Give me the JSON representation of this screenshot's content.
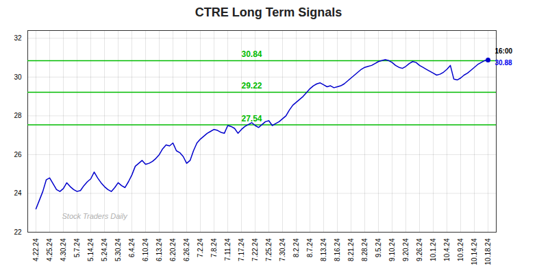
{
  "chart_data": {
    "type": "line",
    "title": "CTRE Long Term Signals",
    "title_color": "#222222",
    "color": "#0000cc",
    "grid": true,
    "ylim": [
      22.0,
      32.4
    ],
    "yticks": [
      22,
      24,
      26,
      28,
      30,
      32
    ],
    "categories": [
      "4.22.24",
      null,
      null,
      null,
      "4.25.24",
      null,
      null,
      null,
      "4.30.24",
      null,
      null,
      null,
      "5.7.24",
      null,
      null,
      null,
      "5.14.24",
      null,
      null,
      null,
      "5.24.24",
      null,
      null,
      null,
      "5.30.24",
      null,
      null,
      null,
      "6.4.24",
      null,
      null,
      null,
      "6.10.24",
      null,
      null,
      null,
      "6.13.24",
      null,
      null,
      null,
      "6.20.24",
      null,
      null,
      null,
      "6.26.24",
      null,
      null,
      null,
      "7.2.24",
      null,
      null,
      null,
      "7.8.24",
      null,
      null,
      null,
      "7.11.24",
      null,
      null,
      null,
      "7.17.24",
      null,
      null,
      null,
      "7.22.24",
      null,
      null,
      null,
      "7.25.24",
      null,
      null,
      null,
      "7.30.24",
      null,
      null,
      null,
      "8.2.24",
      null,
      null,
      null,
      "8.7.24",
      null,
      null,
      null,
      "8.13.24",
      null,
      null,
      null,
      "8.16.24",
      null,
      null,
      null,
      "8.21.24",
      null,
      null,
      null,
      "8.28.24",
      null,
      null,
      null,
      "9.5.24",
      null,
      null,
      null,
      "9.10.24",
      null,
      null,
      null,
      "9.20.24",
      null,
      null,
      null,
      "9.26.24",
      null,
      null,
      null,
      "10.1.24",
      null,
      null,
      null,
      "10.4.24",
      null,
      null,
      null,
      "10.9.24",
      null,
      null,
      null,
      "10.14.24",
      null,
      null,
      null,
      "10.18.24"
    ],
    "values": [
      23.2,
      23.65,
      24.1,
      24.7,
      24.8,
      24.5,
      24.2,
      24.1,
      24.25,
      24.55,
      24.35,
      24.2,
      24.1,
      24.15,
      24.4,
      24.6,
      24.75,
      25.1,
      24.8,
      24.55,
      24.35,
      24.2,
      24.1,
      24.3,
      24.55,
      24.4,
      24.3,
      24.6,
      24.95,
      25.4,
      25.55,
      25.7,
      25.5,
      25.55,
      25.65,
      25.8,
      26.0,
      26.3,
      26.5,
      26.45,
      26.6,
      26.2,
      26.1,
      25.9,
      25.55,
      25.7,
      26.2,
      26.6,
      26.8,
      26.95,
      27.1,
      27.2,
      27.3,
      27.25,
      27.15,
      27.1,
      27.5,
      27.45,
      27.35,
      27.1,
      27.3,
      27.45,
      27.55,
      27.65,
      27.5,
      27.4,
      27.55,
      27.7,
      27.75,
      27.5,
      27.6,
      27.7,
      27.85,
      28.0,
      28.3,
      28.55,
      28.7,
      28.85,
      29.0,
      29.2,
      29.4,
      29.55,
      29.65,
      29.7,
      29.6,
      29.5,
      29.55,
      29.45,
      29.5,
      29.55,
      29.65,
      29.8,
      29.95,
      30.1,
      30.25,
      30.4,
      30.5,
      30.55,
      30.6,
      30.7,
      30.8,
      30.85,
      30.9,
      30.85,
      30.75,
      30.6,
      30.5,
      30.45,
      30.55,
      30.7,
      30.8,
      30.75,
      30.6,
      30.5,
      30.4,
      30.3,
      30.2,
      30.1,
      30.15,
      30.25,
      30.4,
      30.6,
      29.9,
      29.85,
      29.95,
      30.1,
      30.2,
      30.35,
      30.5,
      30.65,
      30.75,
      30.85,
      30.88
    ],
    "hlines": [
      {
        "y": 30.84,
        "label": "30.84",
        "color": "#00bb00"
      },
      {
        "y": 29.22,
        "label": "29.22",
        "color": "#00bb00"
      },
      {
        "y": 27.54,
        "label": "27.54",
        "color": "#00bb00"
      }
    ],
    "last_point_labels": [
      {
        "text": "16:00",
        "color": "#000000"
      },
      {
        "text": "30.88",
        "color": "#0000ee"
      }
    ],
    "watermark": {
      "text": "Stock Traders Daily",
      "color": "#b0b0b0"
    }
  }
}
